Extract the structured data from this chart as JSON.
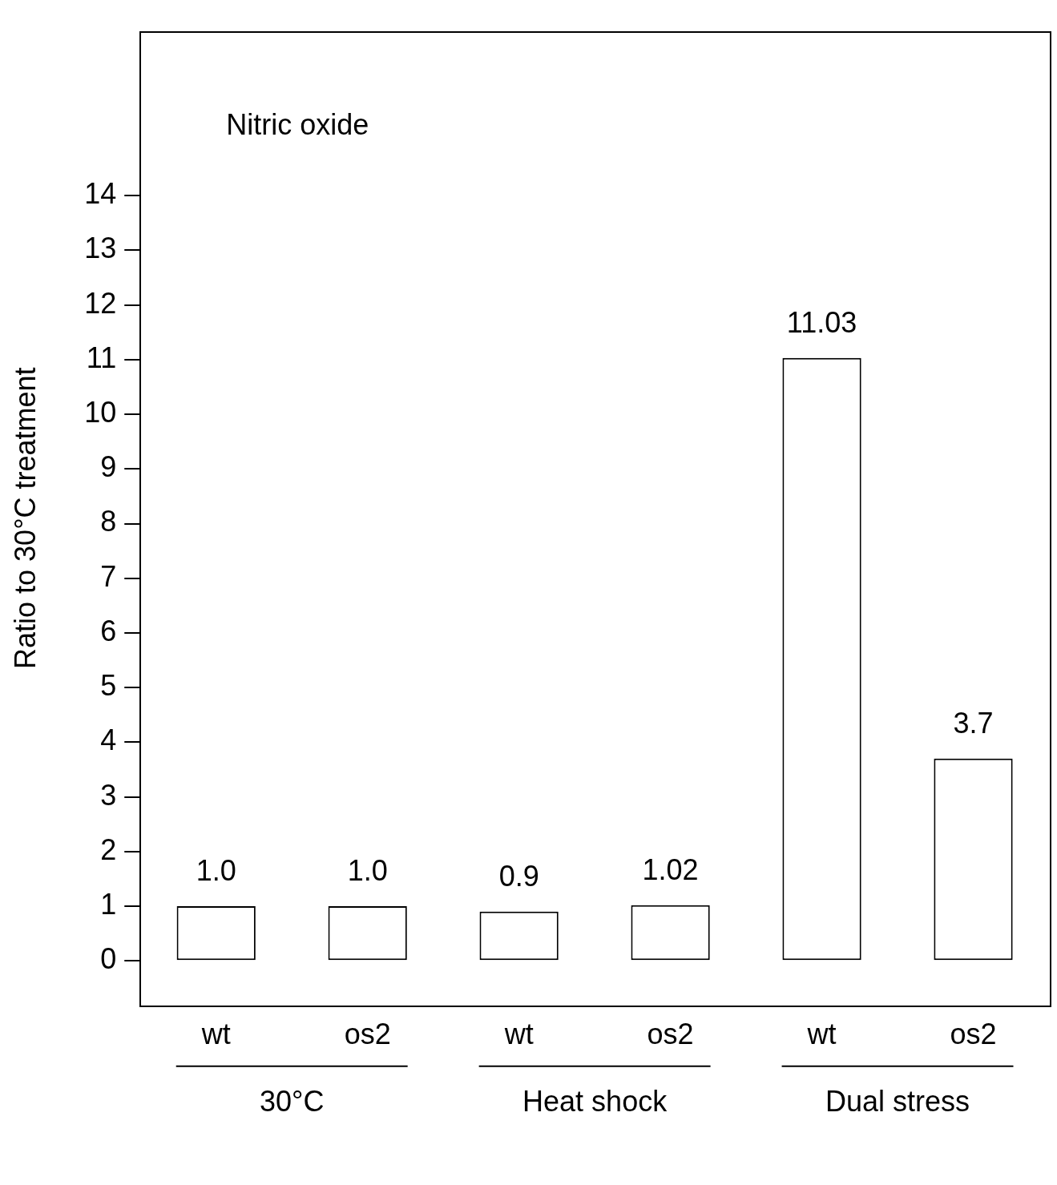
{
  "chart_data": {
    "type": "bar",
    "title": "Nitric oxide",
    "ylabel": "Ratio to 30°C treatment",
    "categories": [
      "wt",
      "os2",
      "wt",
      "os2",
      "wt",
      "os2"
    ],
    "values": [
      1.0,
      1.0,
      0.9,
      1.02,
      11.03,
      3.7
    ],
    "value_labels": [
      "1.0",
      "1.0",
      "0.9",
      "1.02",
      "11.03",
      "3.7"
    ],
    "color": "#ffffff",
    "ylim": [
      -0.8,
      17
    ],
    "yticks": [
      0,
      1,
      2,
      3,
      4,
      5,
      6,
      7,
      8,
      9,
      10,
      11,
      12,
      13,
      14
    ],
    "annotations": [
      "30°C",
      "Heat shock",
      "Dual stress"
    ],
    "grid": false,
    "legend": false
  }
}
